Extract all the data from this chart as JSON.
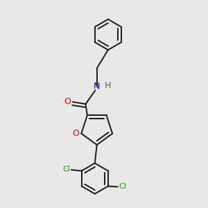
{
  "background_color": "#e8e8e8",
  "bond_color": "#1a1a1a",
  "nitrogen_color": "#0000cc",
  "oxygen_color": "#ff0000",
  "chlorine_color": "#00aa00",
  "line_width": 1.4,
  "dbo": 0.016,
  "figsize": [
    3.0,
    3.0
  ],
  "dpi": 100,
  "xlim": [
    0,
    1
  ],
  "ylim": [
    0,
    1
  ]
}
